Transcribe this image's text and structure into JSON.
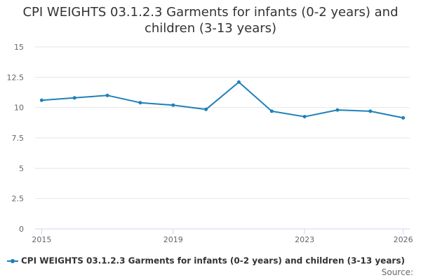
{
  "chart_data": {
    "type": "line",
    "title_lines": [
      "CPI WEIGHTS 03.1.2.3 Garments for infants (0-2 years) and",
      "children (3-13 years)"
    ],
    "x": [
      2015,
      2016,
      2017,
      2018,
      2019,
      2020,
      2021,
      2022,
      2023,
      2024,
      2025,
      2026
    ],
    "x_tick_labels": [
      "2015",
      "2019",
      "2023",
      "2026"
    ],
    "x_tick_values": [
      2015,
      2019,
      2023,
      2026
    ],
    "y_tick_labels": [
      "0",
      "2.5",
      "5",
      "7.5",
      "10",
      "12.5",
      "15"
    ],
    "y_tick_values": [
      0,
      2.5,
      5,
      7.5,
      10,
      12.5,
      15
    ],
    "ylim": [
      0,
      15
    ],
    "xlim": [
      2014.8,
      2026.2
    ],
    "grid": true,
    "legend_position": "bottom",
    "series": [
      {
        "name": "CPI WEIGHTS 03.1.2.3 Garments for infants (0-2 years) and children (3-13 years)",
        "color": "#1f80b8",
        "values": [
          10.6,
          10.8,
          11.0,
          10.4,
          10.2,
          9.85,
          12.1,
          9.7,
          9.25,
          9.8,
          9.7,
          9.15
        ]
      }
    ],
    "source_label": "Source:"
  }
}
